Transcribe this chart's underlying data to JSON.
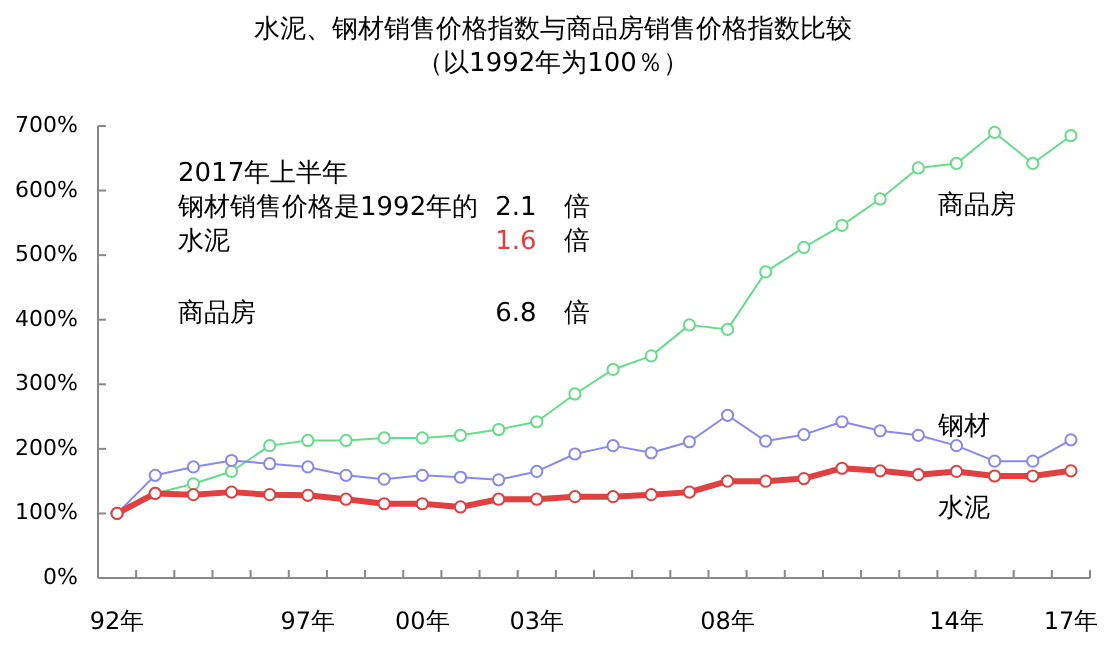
{
  "chart_data": {
    "type": "line",
    "title": "水泥、钢材销售价格指数与商品房销售价格指数比较",
    "subtitle": "（以1992年为100％）",
    "categories": [
      "92年",
      null,
      null,
      null,
      null,
      "97年",
      null,
      null,
      "00年",
      null,
      null,
      "03年",
      null,
      null,
      null,
      null,
      "08年",
      null,
      null,
      null,
      null,
      null,
      "14年",
      null,
      null,
      "17年"
    ],
    "series": [
      {
        "name": "商品房",
        "color": "#66dd88",
        "values": [
          100,
          131,
          146,
          165,
          205,
          213,
          213,
          217,
          217,
          221,
          230,
          242,
          285,
          323,
          344,
          392,
          385,
          474,
          512,
          546,
          587,
          635,
          642,
          690,
          642,
          685
        ]
      },
      {
        "name": "钢材",
        "color": "#8888ee",
        "values": [
          100,
          159,
          172,
          182,
          177,
          172,
          159,
          153,
          159,
          156,
          152,
          165,
          192,
          205,
          194,
          211,
          252,
          212,
          222,
          242,
          228,
          221,
          205,
          181,
          181,
          214
        ]
      },
      {
        "name": "水泥",
        "color": "#e04040",
        "values": [
          100,
          131,
          129,
          133,
          129,
          128,
          122,
          115,
          115,
          110,
          122,
          122,
          126,
          126,
          129,
          133,
          150,
          150,
          154,
          170,
          166,
          160,
          165,
          158,
          158,
          166
        ]
      }
    ],
    "annotations": [
      "2017年上半年",
      "钢材销售价格是1992年的",
      "2.1",
      "倍",
      "水泥",
      "1.6",
      "倍",
      "商品房",
      "6.8",
      "倍"
    ],
    "ylim": [
      0,
      700
    ],
    "yticks": [
      {
        "value": 0,
        "label": "0%"
      },
      {
        "value": 100,
        "label": "100%"
      },
      {
        "value": 200,
        "label": "200%"
      },
      {
        "value": 300,
        "label": "300%"
      },
      {
        "value": 400,
        "label": "400%"
      },
      {
        "value": 500,
        "label": "500%"
      },
      {
        "value": 600,
        "label": "600%"
      },
      {
        "value": 700,
        "label": "700%"
      }
    ],
    "marker": "circle",
    "legend": false,
    "grid": false
  }
}
